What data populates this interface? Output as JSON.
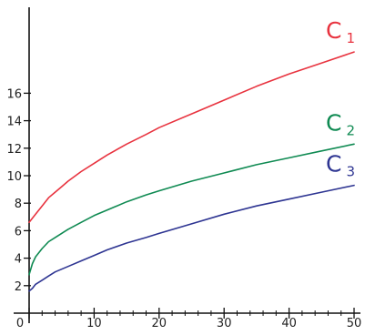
{
  "chart_data": {
    "type": "line",
    "title": "",
    "xlabel": "",
    "ylabel": "",
    "xlim": [
      0,
      50
    ],
    "ylim": [
      0,
      20
    ],
    "grid": false,
    "x_ticks": [
      0,
      10,
      20,
      30,
      40,
      50
    ],
    "y_ticks": [
      2,
      4,
      6,
      8,
      10,
      12,
      14,
      16
    ],
    "series": [
      {
        "main": "C",
        "sub": "1",
        "color": "#e8333f",
        "x": [
          0,
          1,
          2,
          3,
          4,
          5,
          6,
          8,
          10,
          12,
          15,
          18,
          20,
          25,
          30,
          35,
          40,
          45,
          50
        ],
        "y": [
          6.6,
          7.2,
          7.8,
          8.4,
          8.8,
          9.2,
          9.6,
          10.3,
          10.9,
          11.5,
          12.3,
          13.0,
          13.5,
          14.5,
          15.5,
          16.5,
          17.4,
          18.2,
          19.0
        ]
      },
      {
        "main": "C",
        "sub": "2",
        "color": "#0f8a52",
        "x": [
          0,
          0.5,
          1,
          2,
          3,
          4,
          5,
          6,
          8,
          10,
          12,
          15,
          18,
          20,
          25,
          30,
          35,
          40,
          45,
          50
        ],
        "y": [
          2.8,
          3.6,
          4.1,
          4.7,
          5.2,
          5.5,
          5.8,
          6.1,
          6.6,
          7.1,
          7.5,
          8.1,
          8.6,
          8.9,
          9.6,
          10.2,
          10.8,
          11.3,
          11.8,
          12.3
        ]
      },
      {
        "main": "C",
        "sub": "3",
        "color": "#2e3592",
        "x": [
          0,
          0.5,
          1,
          2,
          3,
          4,
          5,
          6,
          8,
          10,
          12,
          15,
          18,
          20,
          25,
          30,
          35,
          40,
          45,
          50
        ],
        "y": [
          1.6,
          1.8,
          2.1,
          2.4,
          2.7,
          3.0,
          3.2,
          3.4,
          3.8,
          4.2,
          4.6,
          5.1,
          5.5,
          5.8,
          6.5,
          7.2,
          7.8,
          8.3,
          8.8,
          9.3
        ]
      }
    ]
  }
}
